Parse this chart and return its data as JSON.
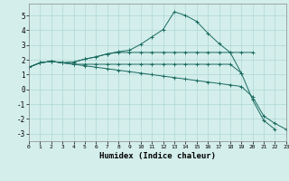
{
  "xlabel": "Humidex (Indice chaleur)",
  "background_color": "#d4eeeb",
  "grid_color": "#aed8d4",
  "line_color": "#1a6b60",
  "xlim": [
    0,
    23
  ],
  "ylim": [
    -3.5,
    5.8
  ],
  "xticks": [
    0,
    1,
    2,
    3,
    4,
    5,
    6,
    7,
    8,
    9,
    10,
    11,
    12,
    13,
    14,
    15,
    16,
    17,
    18,
    19,
    20,
    21,
    22,
    23
  ],
  "yticks": [
    -3,
    -2,
    -1,
    0,
    1,
    2,
    3,
    4,
    5
  ],
  "line1_x": [
    0,
    1,
    2,
    3,
    4,
    5,
    6,
    7,
    8,
    9,
    10,
    11,
    12,
    13,
    14,
    15,
    16,
    17,
    18,
    19,
    20
  ],
  "line1_y": [
    1.5,
    1.8,
    1.9,
    1.8,
    1.85,
    2.05,
    2.2,
    2.4,
    2.55,
    2.65,
    3.05,
    3.55,
    4.05,
    5.25,
    5.0,
    4.6,
    3.8,
    3.1,
    2.5,
    2.5,
    2.5
  ],
  "line2_x": [
    0,
    1,
    2,
    3,
    4,
    5,
    6,
    7,
    8,
    9,
    10,
    11,
    12,
    13,
    14,
    15,
    16,
    17,
    18,
    19
  ],
  "line2_y": [
    1.5,
    1.8,
    1.9,
    1.8,
    1.85,
    2.05,
    2.2,
    2.4,
    2.5,
    2.5,
    2.5,
    2.5,
    2.5,
    2.5,
    2.5,
    2.5,
    2.5,
    2.5,
    2.5,
    1.1
  ],
  "line3_x": [
    0,
    1,
    2,
    3,
    4,
    5,
    6,
    7,
    8,
    9,
    10,
    11,
    12,
    13,
    14,
    15,
    16,
    17,
    18,
    19,
    20,
    21,
    22
  ],
  "line3_y": [
    1.5,
    1.8,
    1.9,
    1.8,
    1.7,
    1.7,
    1.7,
    1.7,
    1.7,
    1.7,
    1.7,
    1.7,
    1.7,
    1.7,
    1.7,
    1.7,
    1.7,
    1.7,
    1.7,
    1.1,
    -0.7,
    -2.1,
    -2.7
  ],
  "line4_x": [
    0,
    1,
    2,
    3,
    4,
    5,
    6,
    7,
    8,
    9,
    10,
    11,
    12,
    13,
    14,
    15,
    16,
    17,
    18,
    19,
    20,
    21,
    22,
    23
  ],
  "line4_y": [
    1.5,
    1.8,
    1.9,
    1.8,
    1.7,
    1.6,
    1.5,
    1.4,
    1.3,
    1.2,
    1.1,
    1.0,
    0.9,
    0.8,
    0.7,
    0.6,
    0.5,
    0.4,
    0.3,
    0.2,
    -0.5,
    -1.8,
    -2.3,
    -2.7
  ]
}
